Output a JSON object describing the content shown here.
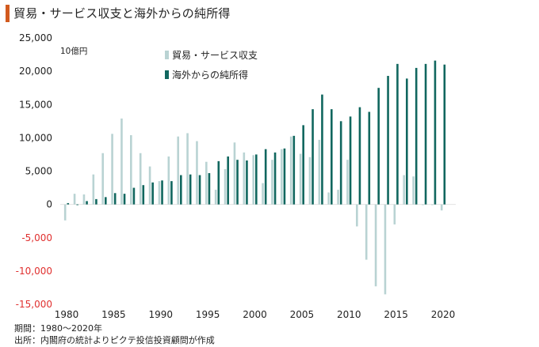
{
  "title": "貿易・サービス収支と海外からの純所得",
  "footnotes": {
    "period": "期間：1980〜2020年",
    "source": "出所：内閣府の統計よりピクテ投信投資顧問が作成"
  },
  "chart_data": {
    "type": "bar",
    "unit_label": "10億円",
    "ylim": [
      -15000,
      25000
    ],
    "y_ticks": [
      -15000,
      -10000,
      -5000,
      0,
      5000,
      10000,
      15000,
      20000,
      25000
    ],
    "y_tick_labels": [
      "-15,000",
      "-10,000",
      "-5,000",
      "0",
      "5,000",
      "10,000",
      "15,000",
      "20,000",
      "25,000"
    ],
    "negative_tick_color": "#e0302f",
    "x_ticks": [
      1980,
      1985,
      1990,
      1995,
      2000,
      2005,
      2010,
      2015,
      2020
    ],
    "categories": [
      1980,
      1981,
      1982,
      1983,
      1984,
      1985,
      1986,
      1987,
      1988,
      1989,
      1990,
      1991,
      1992,
      1993,
      1994,
      1995,
      1996,
      1997,
      1998,
      1999,
      2000,
      2001,
      2002,
      2003,
      2004,
      2005,
      2006,
      2007,
      2008,
      2009,
      2010,
      2011,
      2012,
      2013,
      2014,
      2015,
      2016,
      2017,
      2018,
      2019,
      2020
    ],
    "grid": false,
    "legend": "top-center",
    "series": [
      {
        "name": "貿易・サービス収支",
        "color": "#b9d3d3",
        "values": [
          -2400,
          1600,
          1500,
          4500,
          7700,
          10600,
          12900,
          10400,
          7700,
          5700,
          3500,
          7200,
          10200,
          10700,
          9500,
          6400,
          2200,
          5300,
          9300,
          7800,
          7400,
          3200,
          6700,
          8300,
          10200,
          7600,
          7100,
          9700,
          1800,
          2200,
          6700,
          -3300,
          -8300,
          -12300,
          -13500,
          -3000,
          4400,
          4200,
          -100,
          -100,
          -900
        ]
      },
      {
        "name": "海外からの純所得",
        "color": "#11675f",
        "values": [
          200,
          -100,
          500,
          800,
          1100,
          1700,
          1600,
          2500,
          2900,
          3300,
          3600,
          3500,
          4400,
          4500,
          4400,
          4700,
          6500,
          7200,
          6700,
          6600,
          7500,
          8300,
          7800,
          8400,
          10300,
          11900,
          14300,
          16500,
          14300,
          12500,
          13200,
          14600,
          13900,
          17500,
          19300,
          21100,
          18900,
          20500,
          21100,
          21600,
          21000
        ]
      }
    ]
  }
}
